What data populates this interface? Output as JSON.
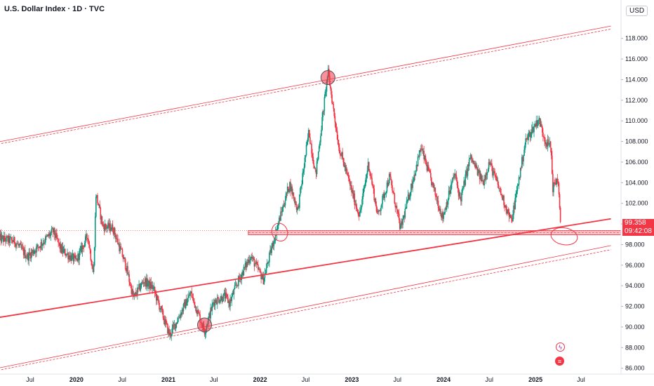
{
  "header": {
    "title": "U.S. Dollar Index · 1D · TVC",
    "currency": "USD"
  },
  "price_tag": {
    "price": "99.358",
    "countdown": "09:42:08"
  },
  "colors": {
    "up": "#089981",
    "down": "#f23645",
    "line": "#f23645",
    "zone": "#f7c0c4"
  },
  "events": [
    {
      "name": "lightning-event-icon",
      "symbol": "ϟ"
    },
    {
      "name": "us-flag-event-icon",
      "symbol": "≡"
    }
  ],
  "chart_data": {
    "type": "candlestick",
    "title": "U.S. Dollar Index · 1D · TVC",
    "y_axis": {
      "unit": "USD",
      "range": [
        85.5,
        120.5
      ],
      "ticks": [
        "86.000",
        "88.000",
        "90.000",
        "92.000",
        "94.000",
        "96.000",
        "98.000",
        "100.000",
        "102.000",
        "104.000",
        "106.000",
        "108.000",
        "110.000",
        "112.000",
        "114.000",
        "116.000",
        "118.000"
      ]
    },
    "x_axis": {
      "ticks": [
        {
          "label": "Jul",
          "date": "2019-07-01",
          "year": false
        },
        {
          "label": "2020",
          "date": "2020-01-01",
          "year": true
        },
        {
          "label": "Jul",
          "date": "2020-07-01",
          "year": false
        },
        {
          "label": "2021",
          "date": "2021-01-01",
          "year": true
        },
        {
          "label": "Jul",
          "date": "2021-07-01",
          "year": false
        },
        {
          "label": "2022",
          "date": "2022-01-01",
          "year": true
        },
        {
          "label": "Jul",
          "date": "2022-07-01",
          "year": false
        },
        {
          "label": "2023",
          "date": "2023-01-01",
          "year": true
        },
        {
          "label": "Jul",
          "date": "2023-07-01",
          "year": false
        },
        {
          "label": "2024",
          "date": "2024-01-01",
          "year": true
        },
        {
          "label": "Jul",
          "date": "2024-07-01",
          "year": false
        },
        {
          "label": "2025",
          "date": "2025-01-01",
          "year": true
        },
        {
          "label": "Jul",
          "date": "2025-07-01",
          "year": false
        }
      ]
    },
    "price_path": [
      [
        "2019-03-01",
        98.6
      ],
      [
        "2019-05-01",
        98.3
      ],
      [
        "2019-06-20",
        96.8
      ],
      [
        "2019-08-15",
        98.1
      ],
      [
        "2019-10-01",
        99.3
      ],
      [
        "2019-11-01",
        97.5
      ],
      [
        "2019-12-31",
        96.4
      ],
      [
        "2020-02-15",
        98.9
      ],
      [
        "2020-03-09",
        95.0
      ],
      [
        "2020-03-19",
        102.9
      ],
      [
        "2020-04-15",
        99.8
      ],
      [
        "2020-05-25",
        99.6
      ],
      [
        "2020-07-15",
        96.0
      ],
      [
        "2020-08-15",
        92.8
      ],
      [
        "2020-09-25",
        94.5
      ],
      [
        "2020-11-01",
        93.8
      ],
      [
        "2021-01-06",
        89.2
      ],
      [
        "2021-03-31",
        93.3
      ],
      [
        "2021-05-25",
        89.6
      ],
      [
        "2021-07-01",
        92.5
      ],
      [
        "2021-08-15",
        93.0
      ],
      [
        "2021-09-01",
        92.3
      ],
      [
        "2021-10-01",
        94.2
      ],
      [
        "2021-11-24",
        96.9
      ],
      [
        "2022-01-14",
        94.6
      ],
      [
        "2022-03-07",
        99.4
      ],
      [
        "2022-04-28",
        103.9
      ],
      [
        "2022-05-31",
        101.3
      ],
      [
        "2022-07-14",
        109.0
      ],
      [
        "2022-08-10",
        104.7
      ],
      [
        "2022-09-28",
        114.8
      ],
      [
        "2022-11-10",
        107.5
      ],
      [
        "2023-01-15",
        102.0
      ],
      [
        "2023-02-01",
        100.8
      ],
      [
        "2023-03-08",
        105.9
      ],
      [
        "2023-04-14",
        100.8
      ],
      [
        "2023-05-31",
        104.6
      ],
      [
        "2023-07-14",
        99.5
      ],
      [
        "2023-10-03",
        107.4
      ],
      [
        "2023-12-28",
        100.6
      ],
      [
        "2024-02-14",
        104.9
      ],
      [
        "2024-03-08",
        102.3
      ],
      [
        "2024-04-16",
        106.5
      ],
      [
        "2024-06-06",
        104.0
      ],
      [
        "2024-07-01",
        106.0
      ],
      [
        "2024-09-27",
        100.2
      ],
      [
        "2024-11-22",
        108.0
      ],
      [
        "2025-01-13",
        110.2
      ],
      [
        "2025-02-10",
        108.0
      ],
      [
        "2025-03-03",
        107.5
      ],
      [
        "2025-03-11",
        103.5
      ],
      [
        "2025-03-31",
        104.5
      ],
      [
        "2025-04-11",
        99.358
      ]
    ],
    "trendlines": [
      {
        "name": "upper-channel-line",
        "from": [
          "2018-08-01",
          107.0
        ],
        "to": [
          "2025-10-28",
          119.2
        ],
        "style": "thin"
      },
      {
        "name": "upper-channel-dashed-line",
        "from": [
          "2018-08-01",
          106.8
        ],
        "to": [
          "2025-10-28",
          118.9
        ],
        "style": "dashed"
      },
      {
        "name": "mid-trend-line",
        "from": [
          "2018-08-01",
          90.1
        ],
        "to": [
          "2025-10-28",
          100.5
        ],
        "style": "bold"
      },
      {
        "name": "lower-channel-line",
        "from": [
          "2018-08-01",
          85.0
        ],
        "to": [
          "2025-10-28",
          97.9
        ],
        "style": "thin"
      },
      {
        "name": "lower-channel-dashed-line",
        "from": [
          "2018-08-01",
          84.8
        ],
        "to": [
          "2025-10-28",
          97.5
        ],
        "style": "dashed"
      }
    ],
    "support_zone": {
      "from": "2021-11-15",
      "to": "2025-10-28",
      "low": 98.95,
      "high": 99.35
    },
    "highlight_markers": [
      {
        "name": "top-marker",
        "date": "2022-09-28",
        "price": 114.2
      },
      {
        "name": "bottom-marker",
        "date": "2021-05-25",
        "price": 90.2
      }
    ],
    "outline_markers": [
      {
        "name": "retest-ellipse-marker",
        "date": "2022-03-20",
        "price": 99.2
      },
      {
        "name": "current-ellipse-marker",
        "date": "2025-04-25",
        "price": 98.8
      }
    ],
    "grid": false
  }
}
